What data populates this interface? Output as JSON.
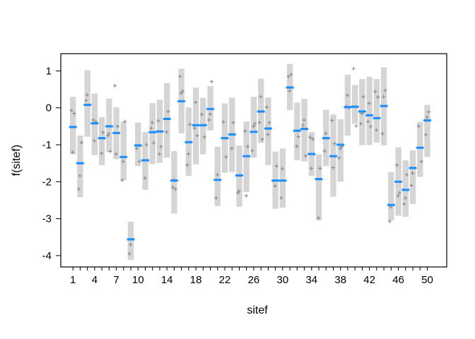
{
  "figure": {
    "background": "#ffffff"
  },
  "chart_data": {
    "type": "errorbar",
    "subtype": "caterpillar-random-effects",
    "title": "",
    "xlabel": "sitef",
    "ylabel": "f(sitef)",
    "legend": "none",
    "grid": false,
    "xlim": [
      0.3,
      50.7
    ],
    "ylim": [
      -4.32,
      1.32
    ],
    "x_ticks_all_sites": true,
    "x_tick_labels": [
      1,
      4,
      7,
      10,
      14,
      18,
      22,
      26,
      30,
      34,
      38,
      42,
      46,
      50
    ],
    "y_tick_labels": [
      1,
      0,
      -1,
      -2,
      -3,
      -4
    ],
    "colors": {
      "interval_bar": "#d5d5d5",
      "estimate_dash": "#1e90ff",
      "point_marker": "#8a8a8a",
      "axis": "#000000",
      "background": "#ffffff"
    },
    "sites": [
      1,
      2,
      3,
      4,
      5,
      6,
      7,
      8,
      9,
      10,
      11,
      12,
      13,
      14,
      15,
      16,
      17,
      18,
      19,
      20,
      21,
      22,
      23,
      24,
      25,
      26,
      27,
      28,
      29,
      30,
      31,
      32,
      33,
      34,
      35,
      36,
      37,
      38,
      39,
      40,
      41,
      42,
      43,
      44,
      45,
      46,
      47,
      48,
      49,
      50
    ],
    "estimate": [
      -0.52,
      -1.5,
      0.08,
      -0.42,
      -0.82,
      -0.5,
      -0.68,
      -1.33,
      -3.56,
      -1.02,
      -1.42,
      -0.66,
      -0.64,
      -0.3,
      -1.97,
      0.18,
      -0.93,
      -0.47,
      -0.47,
      -0.03,
      -1.95,
      -0.82,
      -0.72,
      -1.83,
      -1.31,
      -0.65,
      -0.1,
      -0.56,
      -1.97,
      -1.97,
      0.55,
      -0.62,
      -0.57,
      -1.25,
      -1.93,
      -0.82,
      -1.31,
      -1.0,
      0.02,
      0.03,
      -0.1,
      -0.2,
      -0.28,
      0.05,
      -2.63,
      -2.0,
      -2.22,
      -1.63,
      -1.08,
      -0.34
    ],
    "ci_high": [
      0.3,
      -0.75,
      1.02,
      0.39,
      -0.25,
      0.25,
      0.02,
      -0.37,
      -3.08,
      -0.4,
      -0.66,
      0.13,
      0.22,
      0.67,
      -1.17,
      1.06,
      0.01,
      0.55,
      0.27,
      0.59,
      -1.05,
      0.12,
      0.27,
      -1.02,
      -0.37,
      0.3,
      0.79,
      0.28,
      -1.18,
      -1.1,
      1.19,
      0.14,
      0.24,
      -0.66,
      -1.26,
      -0.05,
      -0.18,
      -0.31,
      0.9,
      0.62,
      0.78,
      0.84,
      0.78,
      1.1,
      -1.74,
      -1.07,
      -1.42,
      -1.15,
      -0.38,
      0.08
    ],
    "ci_low": [
      -1.26,
      -2.42,
      -0.78,
      -1.28,
      -1.55,
      -1.2,
      -1.39,
      -1.96,
      -4.12,
      -1.58,
      -2.22,
      -1.52,
      -1.49,
      -1.35,
      -2.86,
      -0.69,
      -1.84,
      -1.53,
      -1.26,
      -0.61,
      -2.66,
      -1.76,
      -1.74,
      -2.68,
      -2.28,
      -1.35,
      -0.95,
      -1.55,
      -2.73,
      -2.7,
      -0.06,
      -1.42,
      -1.45,
      -1.84,
      -3.05,
      -1.58,
      -2.41,
      -2.0,
      -0.75,
      -0.43,
      -1.01,
      -1.01,
      -0.94,
      -1.01,
      -3.05,
      -2.92,
      -2.95,
      -2.6,
      -1.87,
      -1.33
    ],
    "points": [
      [
        -0.07,
        -0.15,
        -1.2
      ],
      [
        -0.94,
        -1.84,
        -2.2
      ],
      [
        0.35,
        0.2
      ],
      [
        -0.33,
        -0.38,
        -0.89
      ],
      [
        -0.67,
        -1.23
      ],
      [
        -0.7,
        -0.75,
        -1.18
      ],
      [
        0.6,
        -0.5,
        -1.25
      ],
      [
        -0.37,
        -1.45,
        -1.96
      ],
      [
        -3.7,
        -3.95
      ],
      [
        -1.1,
        -1.45
      ],
      [
        -1.0,
        -1.9
      ],
      [
        -0.4,
        -0.55,
        -0.95
      ],
      [
        -0.35,
        -1.05,
        -1.25
      ],
      [
        -0.1,
        -0.65
      ],
      [
        -1.95,
        -2.15,
        -2.2
      ],
      [
        0.85,
        0.45,
        0.4
      ],
      [
        -0.45,
        -1.25,
        -1.55
      ],
      [
        0.15,
        -0.55,
        -0.75
      ],
      [
        -0.18,
        -0.79
      ],
      [
        0.71,
        -0.17,
        -0.33
      ],
      [
        -1.81,
        -2.44
      ],
      [
        -0.38,
        -1.33
      ],
      [
        -0.4,
        -1.1
      ],
      [
        -2.25,
        -2.3
      ],
      [
        -0.63,
        -1.05,
        -2.38
      ],
      [
        -0.43,
        -0.5,
        -1.16
      ],
      [
        0.3,
        -0.4,
        -0.85
      ],
      [
        0.02,
        -0.4,
        -0.72
      ],
      [
        -1.58,
        -2.12
      ],
      [
        -1.65,
        -2.44
      ],
      [
        0.85,
        0.9,
        0.46
      ],
      [
        -0.78,
        -1.04
      ],
      [
        -0.33,
        -0.47,
        -1.3
      ],
      [
        -0.8,
        -0.85,
        -1.64
      ],
      [
        -1.64,
        -2.98
      ],
      [
        -0.69,
        -1.17
      ],
      [
        -0.34,
        -0.97,
        -1.62
      ],
      [
        -1.05,
        -1.1,
        -1.36
      ],
      [
        0.34,
        0.04,
        0.0
      ],
      [
        1.06,
        -0.49
      ],
      [
        0.3,
        -0.15,
        -0.43
      ],
      [
        0.12,
        -0.37,
        -0.51
      ],
      [
        0.44,
        0.29,
        -0.6
      ],
      [
        0.47,
        0.3,
        -0.7
      ],
      [
        -2.68,
        -3.07
      ],
      [
        -1.55,
        -2.3,
        -2.38
      ],
      [
        -1.81,
        -2.44,
        -2.6
      ],
      [
        -1.77,
        -2.1
      ],
      [
        -0.5,
        -1.45
      ],
      [
        -0.11,
        -0.25,
        -0.73
      ]
    ]
  }
}
